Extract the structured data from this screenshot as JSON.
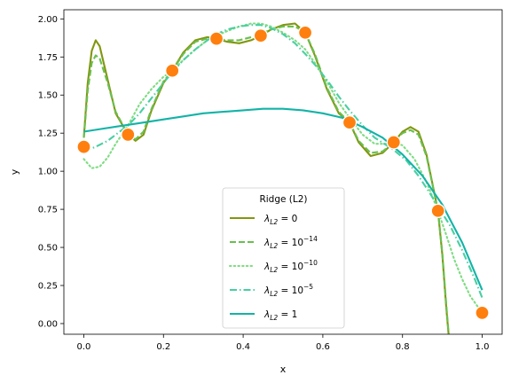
{
  "chart_data": {
    "type": "line",
    "xlabel": "x",
    "ylabel": "y",
    "xlim": [
      -0.05,
      1.05
    ],
    "ylim": [
      -0.07,
      2.06
    ],
    "xticks": [
      "0.0",
      "0.2",
      "0.4",
      "0.6",
      "0.8",
      "1.0"
    ],
    "yticks": [
      "0.00",
      "0.25",
      "0.50",
      "0.75",
      "1.00",
      "1.25",
      "1.50",
      "1.75",
      "2.00"
    ],
    "grid": false,
    "legend": {
      "title": "Ridge (L2)",
      "placement": "lower-center",
      "entries": [
        {
          "base": "λ",
          "sub": "L2",
          "eq": " = 0",
          "exp": ""
        },
        {
          "base": "λ",
          "sub": "L2",
          "eq": " = 10",
          "exp": "−14"
        },
        {
          "base": "λ",
          "sub": "L2",
          "eq": " = 10",
          "exp": "−10"
        },
        {
          "base": "λ",
          "sub": "L2",
          "eq": " = 10",
          "exp": "−5"
        },
        {
          "base": "λ",
          "sub": "L2",
          "eq": " = 1",
          "exp": ""
        }
      ]
    },
    "points": {
      "x": [
        0.0,
        0.111,
        0.222,
        0.333,
        0.444,
        0.556,
        0.667,
        0.778,
        0.889,
        1.0
      ],
      "y": [
        1.16,
        1.24,
        1.66,
        1.87,
        1.89,
        1.91,
        1.32,
        1.19,
        0.74,
        0.07
      ],
      "color": "#ff7f0e"
    },
    "series": [
      {
        "color": "#82960f",
        "dash": "solid",
        "x": [
          0.0,
          0.01,
          0.02,
          0.03,
          0.04,
          0.06,
          0.08,
          0.111,
          0.13,
          0.15,
          0.17,
          0.2,
          0.222,
          0.25,
          0.28,
          0.31,
          0.333,
          0.36,
          0.39,
          0.42,
          0.444,
          0.47,
          0.5,
          0.53,
          0.556,
          0.58,
          0.61,
          0.64,
          0.667,
          0.69,
          0.72,
          0.75,
          0.778,
          0.8,
          0.82,
          0.84,
          0.86,
          0.889,
          0.9,
          0.91,
          0.92
        ],
        "y": [
          1.22,
          1.58,
          1.79,
          1.86,
          1.82,
          1.6,
          1.38,
          1.24,
          1.2,
          1.24,
          1.4,
          1.58,
          1.66,
          1.78,
          1.86,
          1.88,
          1.87,
          1.85,
          1.84,
          1.86,
          1.89,
          1.93,
          1.96,
          1.97,
          1.91,
          1.76,
          1.54,
          1.38,
          1.32,
          1.19,
          1.1,
          1.12,
          1.19,
          1.26,
          1.29,
          1.26,
          1.11,
          0.74,
          0.45,
          0.1,
          -0.2
        ]
      },
      {
        "color": "#6abf50",
        "dash": "dashed",
        "x": [
          0.0,
          0.01,
          0.02,
          0.03,
          0.04,
          0.06,
          0.08,
          0.111,
          0.13,
          0.15,
          0.17,
          0.2,
          0.222,
          0.25,
          0.28,
          0.31,
          0.333,
          0.36,
          0.39,
          0.42,
          0.444,
          0.47,
          0.5,
          0.53,
          0.556,
          0.58,
          0.61,
          0.64,
          0.667,
          0.69,
          0.72,
          0.75,
          0.778,
          0.8,
          0.82,
          0.84,
          0.86,
          0.889,
          0.9,
          0.91,
          0.92
        ],
        "y": [
          1.22,
          1.53,
          1.71,
          1.76,
          1.74,
          1.58,
          1.39,
          1.24,
          1.21,
          1.26,
          1.41,
          1.59,
          1.66,
          1.77,
          1.85,
          1.87,
          1.87,
          1.86,
          1.86,
          1.88,
          1.9,
          1.93,
          1.95,
          1.95,
          1.91,
          1.77,
          1.55,
          1.39,
          1.32,
          1.2,
          1.12,
          1.13,
          1.19,
          1.25,
          1.27,
          1.24,
          1.1,
          0.74,
          0.46,
          0.12,
          -0.2
        ]
      },
      {
        "color": "#7fdc82",
        "dash": "dotted",
        "x": [
          0.0,
          0.02,
          0.04,
          0.06,
          0.08,
          0.111,
          0.14,
          0.17,
          0.2,
          0.222,
          0.25,
          0.28,
          0.31,
          0.333,
          0.36,
          0.39,
          0.42,
          0.444,
          0.47,
          0.5,
          0.53,
          0.556,
          0.58,
          0.61,
          0.64,
          0.667,
          0.7,
          0.73,
          0.76,
          0.778,
          0.8,
          0.83,
          0.86,
          0.889,
          0.91,
          0.93,
          0.95,
          0.97,
          1.0
        ],
        "y": [
          1.08,
          1.02,
          1.03,
          1.09,
          1.18,
          1.3,
          1.44,
          1.54,
          1.62,
          1.66,
          1.73,
          1.8,
          1.86,
          1.89,
          1.92,
          1.95,
          1.97,
          1.97,
          1.95,
          1.91,
          1.86,
          1.8,
          1.71,
          1.59,
          1.45,
          1.35,
          1.24,
          1.18,
          1.18,
          1.19,
          1.17,
          1.08,
          0.93,
          0.74,
          0.58,
          0.42,
          0.29,
          0.18,
          0.07
        ]
      },
      {
        "color": "#48cfa2",
        "dash": "dashdot",
        "x": [
          0.0,
          0.03,
          0.06,
          0.09,
          0.111,
          0.14,
          0.17,
          0.2,
          0.222,
          0.25,
          0.28,
          0.31,
          0.333,
          0.36,
          0.39,
          0.42,
          0.444,
          0.47,
          0.5,
          0.53,
          0.556,
          0.58,
          0.61,
          0.64,
          0.667,
          0.7,
          0.73,
          0.76,
          0.778,
          0.81,
          0.84,
          0.87,
          0.889,
          0.92,
          0.95,
          0.98,
          1.0
        ],
        "y": [
          1.13,
          1.16,
          1.2,
          1.26,
          1.3,
          1.38,
          1.48,
          1.58,
          1.65,
          1.73,
          1.8,
          1.86,
          1.9,
          1.93,
          1.95,
          1.96,
          1.96,
          1.94,
          1.9,
          1.84,
          1.77,
          1.7,
          1.6,
          1.49,
          1.4,
          1.3,
          1.22,
          1.17,
          1.14,
          1.07,
          0.97,
          0.85,
          0.77,
          0.64,
          0.48,
          0.3,
          0.17
        ]
      },
      {
        "color": "#13b3a7",
        "dash": "solid",
        "x": [
          0.0,
          0.05,
          0.1,
          0.15,
          0.2,
          0.25,
          0.3,
          0.35,
          0.4,
          0.45,
          0.5,
          0.55,
          0.6,
          0.65,
          0.7,
          0.75,
          0.8,
          0.85,
          0.9,
          0.95,
          1.0
        ],
        "y": [
          1.26,
          1.28,
          1.3,
          1.32,
          1.34,
          1.36,
          1.38,
          1.39,
          1.4,
          1.41,
          1.41,
          1.4,
          1.38,
          1.35,
          1.29,
          1.22,
          1.11,
          0.97,
          0.78,
          0.53,
          0.22
        ]
      }
    ]
  }
}
